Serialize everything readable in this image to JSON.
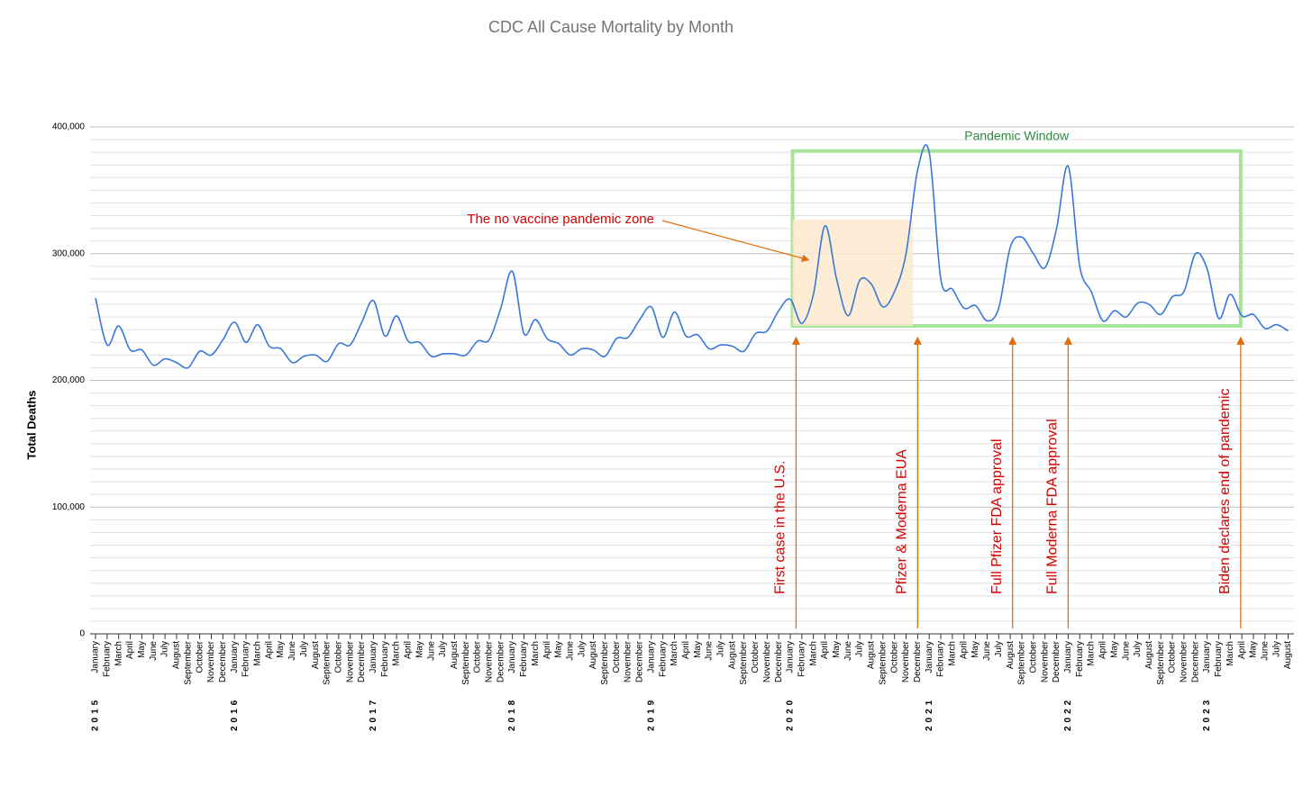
{
  "chart_data": {
    "type": "line",
    "title": "CDC All Cause Mortality by Month",
    "y_label": "Total Deaths",
    "categories": [
      "January",
      "February",
      "March",
      "April",
      "May",
      "June",
      "July",
      "August",
      "September",
      "October",
      "November",
      "December",
      "January",
      "February",
      "March",
      "April",
      "May",
      "June",
      "July",
      "August",
      "September",
      "October",
      "November",
      "December",
      "January",
      "February",
      "March",
      "April",
      "May",
      "June",
      "July",
      "August",
      "September",
      "October",
      "November",
      "December",
      "January",
      "February",
      "March",
      "April",
      "May",
      "June",
      "July",
      "August",
      "September",
      "October",
      "November",
      "December",
      "January",
      "February",
      "March",
      "April",
      "May",
      "June",
      "July",
      "August",
      "September",
      "October",
      "November",
      "December",
      "January",
      "February",
      "March",
      "April",
      "May",
      "June",
      "July",
      "August",
      "September",
      "October",
      "November",
      "December",
      "January",
      "February",
      "March",
      "April",
      "May",
      "June",
      "July",
      "August",
      "September",
      "October",
      "November",
      "December",
      "January",
      "February",
      "March",
      "April",
      "May",
      "June",
      "July",
      "August",
      "September",
      "October",
      "November",
      "December",
      "January",
      "February",
      "March",
      "April",
      "May",
      "June",
      "July",
      "August"
    ],
    "category_groups": [
      "2015",
      null,
      null,
      null,
      null,
      null,
      null,
      null,
      null,
      null,
      null,
      null,
      "2016",
      null,
      null,
      null,
      null,
      null,
      null,
      null,
      null,
      null,
      null,
      null,
      "2017",
      null,
      null,
      null,
      null,
      null,
      null,
      null,
      null,
      null,
      null,
      null,
      "2018",
      null,
      null,
      null,
      null,
      null,
      null,
      null,
      null,
      null,
      null,
      null,
      "2019",
      null,
      null,
      null,
      null,
      null,
      null,
      null,
      null,
      null,
      null,
      null,
      "2020",
      null,
      null,
      null,
      null,
      null,
      null,
      null,
      null,
      null,
      null,
      null,
      "2021",
      null,
      null,
      null,
      null,
      null,
      null,
      null,
      null,
      null,
      null,
      null,
      "2022",
      null,
      null,
      null,
      null,
      null,
      null,
      null,
      null,
      null,
      null,
      null,
      "2023",
      null,
      null,
      null,
      null,
      null,
      null,
      null
    ],
    "series": [
      {
        "name": "Total Deaths",
        "color": "#3b78d6",
        "values": [
          265000,
          228000,
          243000,
          224000,
          224000,
          212000,
          217000,
          214000,
          210000,
          223000,
          220000,
          232000,
          246000,
          230000,
          244000,
          227000,
          225000,
          214000,
          219000,
          220000,
          215000,
          229000,
          228000,
          246000,
          263000,
          235000,
          251000,
          231000,
          230000,
          219000,
          221000,
          221000,
          220000,
          231000,
          232000,
          257000,
          286000,
          237000,
          248000,
          233000,
          229000,
          220000,
          225000,
          224000,
          219000,
          233000,
          234000,
          248000,
          258000,
          234000,
          254000,
          235000,
          236000,
          225000,
          228000,
          227000,
          223000,
          237000,
          239000,
          255000,
          264000,
          245000,
          268000,
          322000,
          280000,
          251000,
          279000,
          276000,
          258000,
          270000,
          300000,
          366000,
          380000,
          280000,
          272000,
          257000,
          259000,
          247000,
          257000,
          305000,
          313000,
          300000,
          289000,
          320000,
          369000,
          290000,
          270000,
          247000,
          255000,
          250000,
          261000,
          260000,
          252000,
          266000,
          270000,
          300000,
          288000,
          249000,
          268000,
          251000,
          252000,
          241000,
          244000,
          239000
        ]
      }
    ],
    "ylim": [
      0,
      400000
    ],
    "yticks": [
      {
        "value": 0,
        "label": "0"
      },
      {
        "value": 100000,
        "label": "100,000"
      },
      {
        "value": 200000,
        "label": "200,000"
      },
      {
        "value": 300000,
        "label": "300,000"
      },
      {
        "value": 400000,
        "label": "400,000"
      }
    ],
    "minor_yticks": [
      10000,
      20000,
      30000,
      40000,
      50000,
      60000,
      70000,
      80000,
      90000,
      110000,
      120000,
      130000,
      140000,
      150000,
      160000,
      170000,
      180000,
      190000,
      210000,
      220000,
      230000,
      240000,
      250000,
      260000,
      270000,
      280000,
      290000,
      310000,
      320000,
      330000,
      340000,
      350000,
      360000,
      370000,
      380000,
      390000
    ],
    "grid": true,
    "regions": [
      {
        "label": "Pandemic Window",
        "x": [
          60.2,
          98.9
        ],
        "y": [
          243000,
          381000
        ],
        "color": "#a8e39a"
      },
      {
        "x": [
          60.2,
          70.6
        ],
        "y": [
          243000,
          327000
        ],
        "color": "#fde9cc"
      }
    ],
    "pointer": {
      "text": "The no vaccine pandemic zone",
      "x": 61.6,
      "y": 295000,
      "color": "#e36c0a",
      "text_color": "#d40000"
    },
    "events": [
      {
        "text": "First case in the U.S.",
        "x": 60.5,
        "y": 234000
      },
      {
        "text": "Pfizer & Moderna EUA",
        "x": 71,
        "y": 234000
      },
      {
        "text": "Full Pfizer FDA approval",
        "x": 79.2,
        "y": 234000
      },
      {
        "text": "Full Moderna FDA approval",
        "x": 84,
        "y": 234000
      },
      {
        "text": "Biden declares end of pandemic",
        "x": 98.9,
        "y": 234000
      }
    ],
    "event_color": "#e36c0a",
    "event_text_color": "#d40000"
  }
}
